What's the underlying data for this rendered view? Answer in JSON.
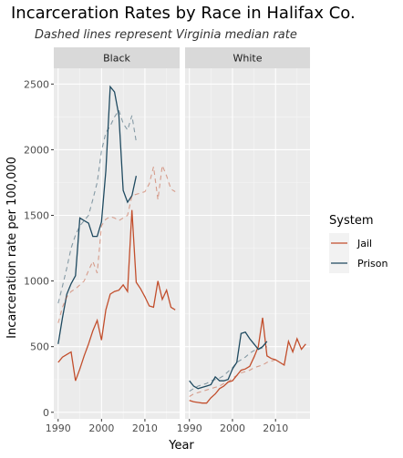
{
  "chart_data": {
    "type": "line",
    "title": "Incarceration Rates by Race in Halifax Co.",
    "subtitle": "Dashed lines represent Virginia median rate",
    "xlabel": "Year",
    "ylabel": "Incarceration rate per 100,000",
    "xlim": [
      1989,
      2018
    ],
    "ylim": [
      -50,
      2620
    ],
    "x_ticks": [
      1990,
      2000,
      2010
    ],
    "y_ticks": [
      0,
      500,
      1000,
      1500,
      2000,
      2500
    ],
    "grid": true,
    "legend": {
      "title": "System",
      "position": "right",
      "entries": [
        "Jail",
        "Prison"
      ]
    },
    "colors": {
      "Jail": "#C24E2C",
      "Prison": "#1F4A60",
      "panel_bg": "#EBEBEB",
      "strip_bg": "#D9D9D9",
      "grid": "#FFFFFF"
    },
    "panels": [
      {
        "label": "Black",
        "series": [
          {
            "name": "Jail",
            "style": "solid",
            "x": [
              1990,
              1991,
              1992,
              1993,
              1994,
              1995,
              1996,
              1997,
              1998,
              1999,
              2000,
              2001,
              2002,
              2003,
              2004,
              2005,
              2006,
              2007,
              2008,
              2009,
              2010,
              2011,
              2012,
              2013,
              2014,
              2015,
              2016,
              2017
            ],
            "y": [
              380,
              420,
              440,
              460,
              240,
              330,
              430,
              520,
              620,
              700,
              550,
              780,
              900,
              920,
              930,
              970,
              920,
              1540,
              990,
              940,
              880,
              810,
              800,
              1000,
              860,
              930,
              800,
              780
            ]
          },
          {
            "name": "Prison",
            "style": "solid",
            "x": [
              1990,
              1991,
              1992,
              1993,
              1994,
              1995,
              1996,
              1997,
              1998,
              1999,
              2000,
              2001,
              2002,
              2003,
              2004,
              2005,
              2006,
              2007,
              2008
            ],
            "y": [
              520,
              720,
              900,
              980,
              1040,
              1480,
              1460,
              1440,
              1340,
              1340,
              1450,
              1840,
              2480,
              2440,
              2260,
              1690,
              1600,
              1650,
              1800
            ]
          },
          {
            "name": "Jail (Virginia median)",
            "style": "dashed",
            "x": [
              1990,
              1991,
              1992,
              1993,
              1994,
              1995,
              1996,
              1997,
              1998,
              1999,
              2000,
              2001,
              2002,
              2003,
              2004,
              2005,
              2006,
              2007,
              2008,
              2009,
              2010,
              2011,
              2012,
              2013,
              2014,
              2015,
              2016,
              2017
            ],
            "y": [
              680,
              800,
              880,
              920,
              940,
              970,
              1000,
              1080,
              1150,
              1060,
              1420,
              1470,
              1490,
              1480,
              1460,
              1480,
              1500,
              1650,
              1660,
              1670,
              1680,
              1740,
              1870,
              1620,
              1880,
              1800,
              1700,
              1680
            ]
          },
          {
            "name": "Prison (Virginia median)",
            "style": "dashed",
            "x": [
              1990,
              1991,
              1992,
              1993,
              1994,
              1995,
              1996,
              1997,
              1998,
              1999,
              2000,
              2001,
              2002,
              2003,
              2004,
              2005,
              2006,
              2007,
              2008
            ],
            "y": [
              830,
              960,
              1100,
              1250,
              1350,
              1420,
              1460,
              1500,
              1620,
              1750,
              1990,
              2130,
              2180,
              2250,
              2300,
              2200,
              2150,
              2260,
              2060
            ]
          }
        ]
      },
      {
        "label": "White",
        "series": [
          {
            "name": "Jail",
            "style": "solid",
            "x": [
              1990,
              1991,
              1992,
              1993,
              1994,
              1995,
              1996,
              1997,
              1998,
              1999,
              2000,
              2001,
              2002,
              2003,
              2004,
              2005,
              2006,
              2007,
              2008,
              2009,
              2010,
              2011,
              2012,
              2013,
              2014,
              2015,
              2016,
              2017
            ],
            "y": [
              90,
              80,
              75,
              70,
              70,
              110,
              140,
              180,
              200,
              230,
              240,
              280,
              320,
              330,
              350,
              420,
              500,
              720,
              430,
              410,
              400,
              380,
              360,
              540,
              460,
              560,
              480,
              520
            ]
          },
          {
            "name": "Prison",
            "style": "solid",
            "x": [
              1990,
              1991,
              1992,
              1993,
              1994,
              1995,
              1996,
              1997,
              1998,
              1999,
              2000,
              2001,
              2002,
              2003,
              2004,
              2005,
              2006,
              2007,
              2008
            ],
            "y": [
              240,
              200,
              180,
              190,
              200,
              210,
              270,
              240,
              240,
              250,
              330,
              380,
              600,
              610,
              560,
              520,
              480,
              500,
              540
            ]
          },
          {
            "name": "Jail (Virginia median)",
            "style": "dashed",
            "x": [
              1990,
              1991,
              1992,
              1993,
              1994,
              1995,
              1996,
              1997,
              1998,
              1999,
              2000,
              2001,
              2002,
              2003,
              2004,
              2005,
              2006,
              2007,
              2008,
              2009,
              2010
            ],
            "y": [
              120,
              140,
              150,
              160,
              170,
              180,
              190,
              200,
              220,
              230,
              260,
              280,
              300,
              310,
              320,
              340,
              350,
              360,
              380,
              390,
              400
            ]
          },
          {
            "name": "Prison (Virginia median)",
            "style": "dashed",
            "x": [
              1990,
              1991,
              1992,
              1993,
              1994,
              1995,
              1996,
              1997,
              1998,
              1999,
              2000,
              2001,
              2002,
              2003,
              2004,
              2005,
              2006,
              2007,
              2008
            ],
            "y": [
              160,
              180,
              200,
              210,
              220,
              240,
              250,
              260,
              280,
              310,
              340,
              380,
              400,
              420,
              450,
              470,
              480,
              490,
              500
            ]
          }
        ]
      }
    ]
  }
}
